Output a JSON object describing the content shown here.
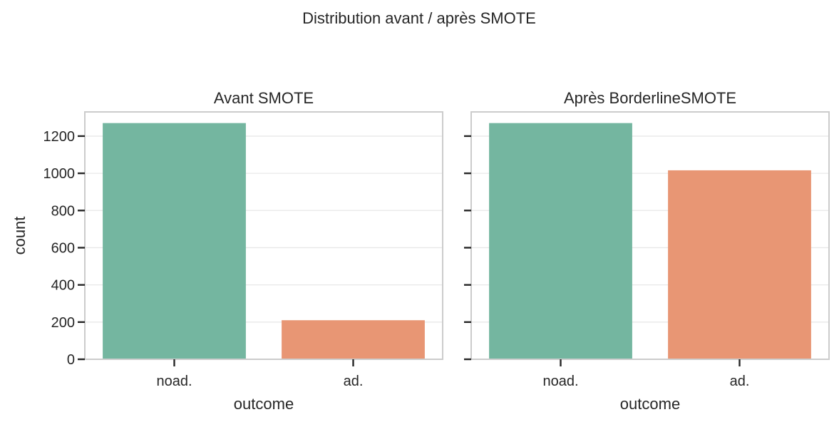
{
  "chart_data": {
    "suptitle": "Distribution avant / après SMOTE",
    "colors": {
      "noad.": "#74b6a0",
      "ad.": "#e89674"
    },
    "panels": [
      {
        "type": "bar",
        "title": "Avant SMOTE",
        "xlabel": "outcome",
        "ylabel": "count",
        "categories": [
          "noad.",
          "ad."
        ],
        "values": [
          1270,
          210
        ],
        "ylim": [
          0,
          1330
        ],
        "yticks": [
          0,
          200,
          400,
          600,
          800,
          1000,
          1200
        ],
        "grid": true
      },
      {
        "type": "bar",
        "title": "Après BorderlineSMOTE",
        "xlabel": "outcome",
        "ylabel": "",
        "categories": [
          "noad.",
          "ad."
        ],
        "values": [
          1270,
          1016
        ],
        "ylim": [
          0,
          1330
        ],
        "yticks": [
          0,
          200,
          400,
          600,
          800,
          1000,
          1200
        ],
        "grid": true
      }
    ]
  }
}
